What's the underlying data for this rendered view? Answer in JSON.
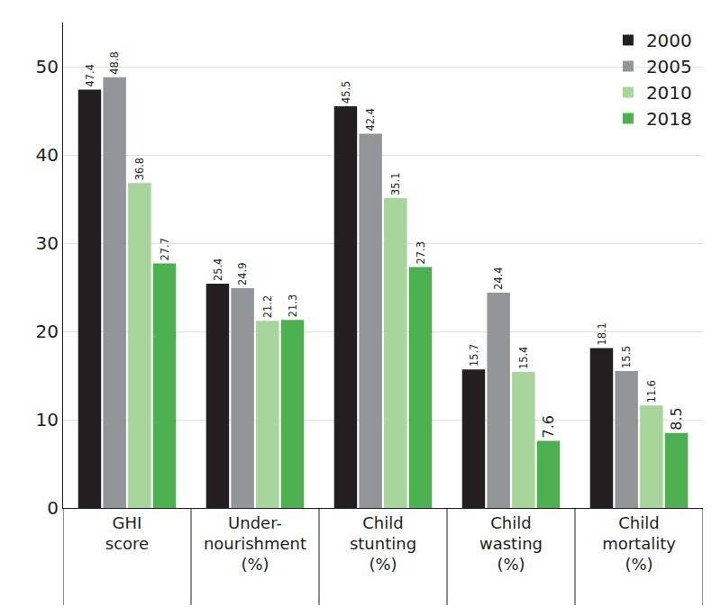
{
  "chart_data": {
    "type": "bar",
    "categories": [
      "GHI\nscore",
      "Under-\nnourishment\n(%)",
      "Child\nstunting\n(%)",
      "Child\nwasting\n(%)",
      "Child\nmortality\n(%)"
    ],
    "series": [
      {
        "name": "2000",
        "color": "#231f20",
        "values": [
          47.4,
          25.4,
          45.5,
          15.7,
          18.1
        ]
      },
      {
        "name": "2005",
        "color": "#939598",
        "values": [
          48.8,
          24.9,
          42.4,
          24.4,
          15.5
        ]
      },
      {
        "name": "2010",
        "color": "#a8d59b",
        "values": [
          36.8,
          21.2,
          35.1,
          15.4,
          11.6
        ]
      },
      {
        "name": "2018",
        "color": "#4cb050",
        "values": [
          27.7,
          21.3,
          27.3,
          7.6,
          8.5
        ]
      }
    ],
    "ylim": [
      0,
      55
    ],
    "yticks": [
      0,
      10,
      20,
      30,
      40,
      50
    ],
    "grid": true,
    "legend": "upper right",
    "data_labels": true
  }
}
